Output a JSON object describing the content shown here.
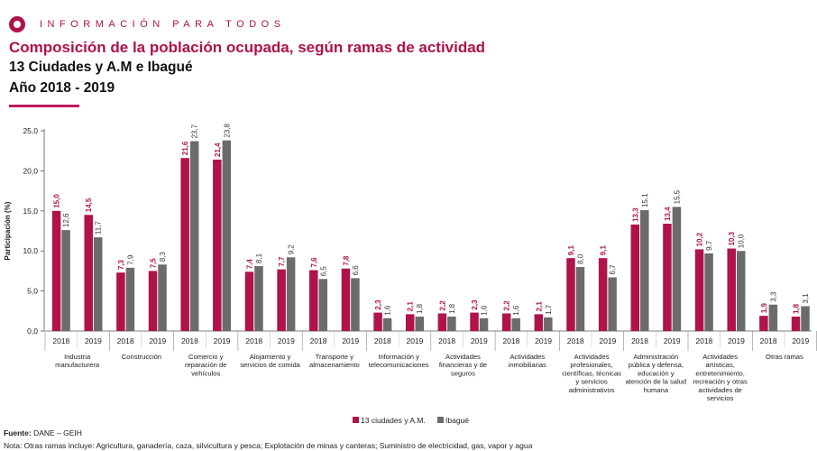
{
  "header": {
    "brand": "INFORMACIÓN PARA TODOS",
    "title": "Composición de la población ocupada, según ramas de actividad",
    "subtitle": "13 Ciudades y A.M e Ibagué",
    "subtitle2": "Año 2018 - 2019"
  },
  "footer": {
    "source_label": "Fuente:",
    "source_value": "DANE – GEIH",
    "note": "Nota: Otras ramas incluye:  Agricultura, ganadería, caza, silvicultura y pesca; Explotación de minas y canteras; Suministro de electricidad, gas, vapor y  agua"
  },
  "colors": {
    "series1": "#b0124a",
    "series2": "#6b6b6b",
    "brand": "#b0124a"
  },
  "chart_data": {
    "type": "bar",
    "ylabel": "Participación (%)",
    "ylim": [
      0,
      25
    ],
    "yticks": [
      "0,0",
      "5,0",
      "10,0",
      "15,0",
      "20,0",
      "25,0"
    ],
    "grid": false,
    "legend_position": "bottom",
    "years": [
      "2018",
      "2019"
    ],
    "categories": [
      [
        "Industria",
        "manufacturera"
      ],
      [
        "Construcción"
      ],
      [
        "Comercio y",
        "reparación de",
        "vehículos"
      ],
      [
        "Alojamiento y",
        "servicios de comida"
      ],
      [
        "Transporte y",
        "almacenamiento"
      ],
      [
        "Información y",
        "telecomunicaciones"
      ],
      [
        "Actividades",
        "financieras y de",
        "seguros"
      ],
      [
        "Actividades",
        "inmobiliarias"
      ],
      [
        "Actividades",
        "profesionales,",
        "científicas, técnicas",
        "y servicios",
        "administrativos"
      ],
      [
        "Administración",
        "pública y defensa,",
        "educación y",
        "atención de la salud",
        "humana"
      ],
      [
        "Actividades",
        "artísticas,",
        "entretenimiento,",
        "recreación y otras",
        "actividades de",
        "servicios"
      ],
      [
        "Otras ramas"
      ]
    ],
    "series": [
      {
        "name": "13 ciudades y A.M.",
        "values": [
          [
            15.0,
            14.5
          ],
          [
            7.3,
            7.5
          ],
          [
            21.6,
            21.4
          ],
          [
            7.4,
            7.7
          ],
          [
            7.6,
            7.8
          ],
          [
            2.3,
            2.1
          ],
          [
            2.2,
            2.3
          ],
          [
            2.2,
            2.1
          ],
          [
            9.1,
            9.1
          ],
          [
            13.3,
            13.4
          ],
          [
            10.2,
            10.3
          ],
          [
            1.9,
            1.8
          ]
        ],
        "labels": [
          [
            "15,0",
            "14,5"
          ],
          [
            "7,3",
            "7,5"
          ],
          [
            "21,6",
            "21,4"
          ],
          [
            "7,4",
            "7,7"
          ],
          [
            "7,6",
            "7,8"
          ],
          [
            "2,3",
            "2,1"
          ],
          [
            "2,2",
            "2,3"
          ],
          [
            "2,2",
            "2,1"
          ],
          [
            "9,1",
            "9,1"
          ],
          [
            "13,3",
            "13,4"
          ],
          [
            "10,2",
            "10,3"
          ],
          [
            "1,9",
            "1,8"
          ]
        ]
      },
      {
        "name": "Ibagué",
        "values": [
          [
            12.6,
            11.7
          ],
          [
            7.9,
            8.3
          ],
          [
            23.7,
            23.8
          ],
          [
            8.1,
            9.2
          ],
          [
            6.5,
            6.6
          ],
          [
            1.6,
            1.8
          ],
          [
            1.8,
            1.6
          ],
          [
            1.6,
            1.7
          ],
          [
            8.0,
            6.7
          ],
          [
            15.1,
            15.5
          ],
          [
            9.7,
            10.0
          ],
          [
            3.3,
            3.1
          ]
        ],
        "labels": [
          [
            "12,6",
            "11,7"
          ],
          [
            "7,9",
            "8,3"
          ],
          [
            "23,7",
            "23,8"
          ],
          [
            "8,1",
            "9,2"
          ],
          [
            "6,5",
            "6,6"
          ],
          [
            "1,6",
            "1,8"
          ],
          [
            "1,8",
            "1,6"
          ],
          [
            "1,6",
            "1,7"
          ],
          [
            "8,0",
            "6,7"
          ],
          [
            "15,1",
            "15,5"
          ],
          [
            "9,7",
            "10,0"
          ],
          [
            "3,3",
            "3,1"
          ]
        ]
      }
    ]
  }
}
